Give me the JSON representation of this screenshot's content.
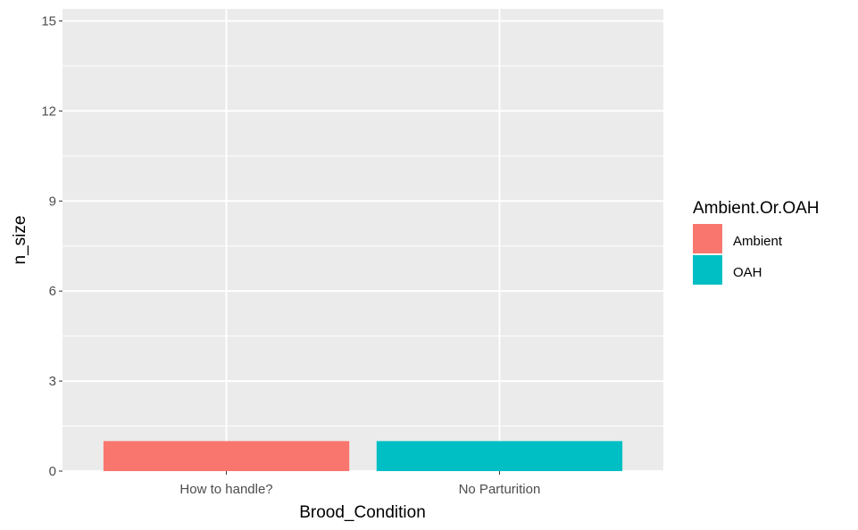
{
  "chart_data": {
    "type": "bar",
    "categories": [
      "How to handle?",
      "No Parturition"
    ],
    "series": [
      {
        "name": "Ambient",
        "color": "#F8766D",
        "values": [
          1,
          null
        ]
      },
      {
        "name": "OAH",
        "color": "#00BFC4",
        "values": [
          null,
          1
        ]
      }
    ],
    "xlabel": "Brood_Condition",
    "ylabel": "n_size",
    "ylim": [
      0,
      15.4
    ],
    "yticks": [
      0,
      3,
      6,
      9,
      12,
      15
    ],
    "ytick_labels": [
      "0",
      "3",
      "6",
      "9",
      "12",
      "15"
    ],
    "grid": true,
    "legend": {
      "title": "Ambient.Or.OAH",
      "position": "right"
    },
    "panel_background": "#EBEBEB",
    "grid_color": "#FFFFFF"
  }
}
